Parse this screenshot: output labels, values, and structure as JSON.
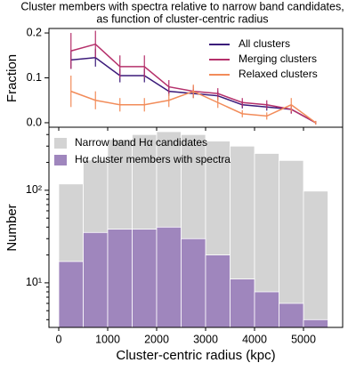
{
  "chart_data": [
    {
      "type": "line",
      "title": [
        "Cluster members with spectra relative to narrow band candidates,",
        "as function of cluster-centric radius"
      ],
      "y_label": "Fraction",
      "x": [
        250,
        750,
        1250,
        1750,
        2250,
        2750,
        3250,
        3750,
        4250,
        4750,
        5250
      ],
      "xlim": [
        -200,
        5800
      ],
      "xticks": [
        0,
        1000,
        2000,
        3000,
        4000,
        5000
      ],
      "ylim": [
        -0.01,
        0.21
      ],
      "yticks": [
        {
          "value": 0,
          "label": "0.0"
        },
        0.1,
        0.2
      ],
      "legend": "upper right",
      "series": [
        {
          "name": "All clusters",
          "color": "#3b1a7a",
          "values": [
            0.14,
            0.145,
            0.105,
            0.105,
            0.07,
            0.065,
            0.06,
            0.04,
            0.035,
            0.03,
            0.0
          ],
          "errors": [
            0.02,
            0.02,
            0.015,
            0.015,
            0.01,
            0.01,
            0.01,
            0.008,
            0.008,
            0.008,
            0.003
          ]
        },
        {
          "name": "Merging clusters",
          "color": "#b5306b",
          "values": [
            0.16,
            0.175,
            0.125,
            0.125,
            0.08,
            0.07,
            0.065,
            0.045,
            0.04,
            0.03,
            0.0
          ],
          "errors": [
            0.04,
            0.03,
            0.025,
            0.025,
            0.015,
            0.012,
            0.012,
            0.01,
            0.01,
            0.01,
            0.004
          ]
        },
        {
          "name": "Relaxed clusters",
          "color": "#f28c5a",
          "values": [
            0.07,
            0.05,
            0.04,
            0.04,
            0.05,
            0.07,
            0.045,
            0.02,
            0.015,
            0.04,
            0.0
          ],
          "errors": [
            0.035,
            0.02,
            0.015,
            0.015,
            0.015,
            0.015,
            0.012,
            0.008,
            0.008,
            0.015,
            0.004
          ]
        }
      ]
    },
    {
      "type": "histogram",
      "x_label": "Cluster-centric radius (kpc)",
      "y_label": "Number",
      "bins": [
        0,
        500,
        1000,
        1500,
        2000,
        2500,
        3000,
        3500,
        4000,
        4500,
        5000,
        5500
      ],
      "xlim": [
        -200,
        5800
      ],
      "xticks": [
        0,
        1000,
        2000,
        3000,
        4000,
        5000
      ],
      "ylim": [
        3.3,
        480
      ],
      "log_y": true,
      "yticks": [
        {
          "value": 10,
          "label": "10¹"
        },
        {
          "value": 100,
          "label": "10²"
        }
      ],
      "legend": "upper left",
      "series": [
        {
          "name": "Narrow band Hα candidates",
          "color": "#d3d3d3",
          "values": [
            117,
            212,
            354,
            400,
            430,
            400,
            340,
            300,
            250,
            210,
            98
          ]
        },
        {
          "name": "Hα cluster members with spectra",
          "color": "#9f86bd",
          "values": [
            17,
            35,
            38,
            38,
            40,
            30,
            20,
            11,
            8,
            6,
            4
          ]
        }
      ]
    }
  ]
}
